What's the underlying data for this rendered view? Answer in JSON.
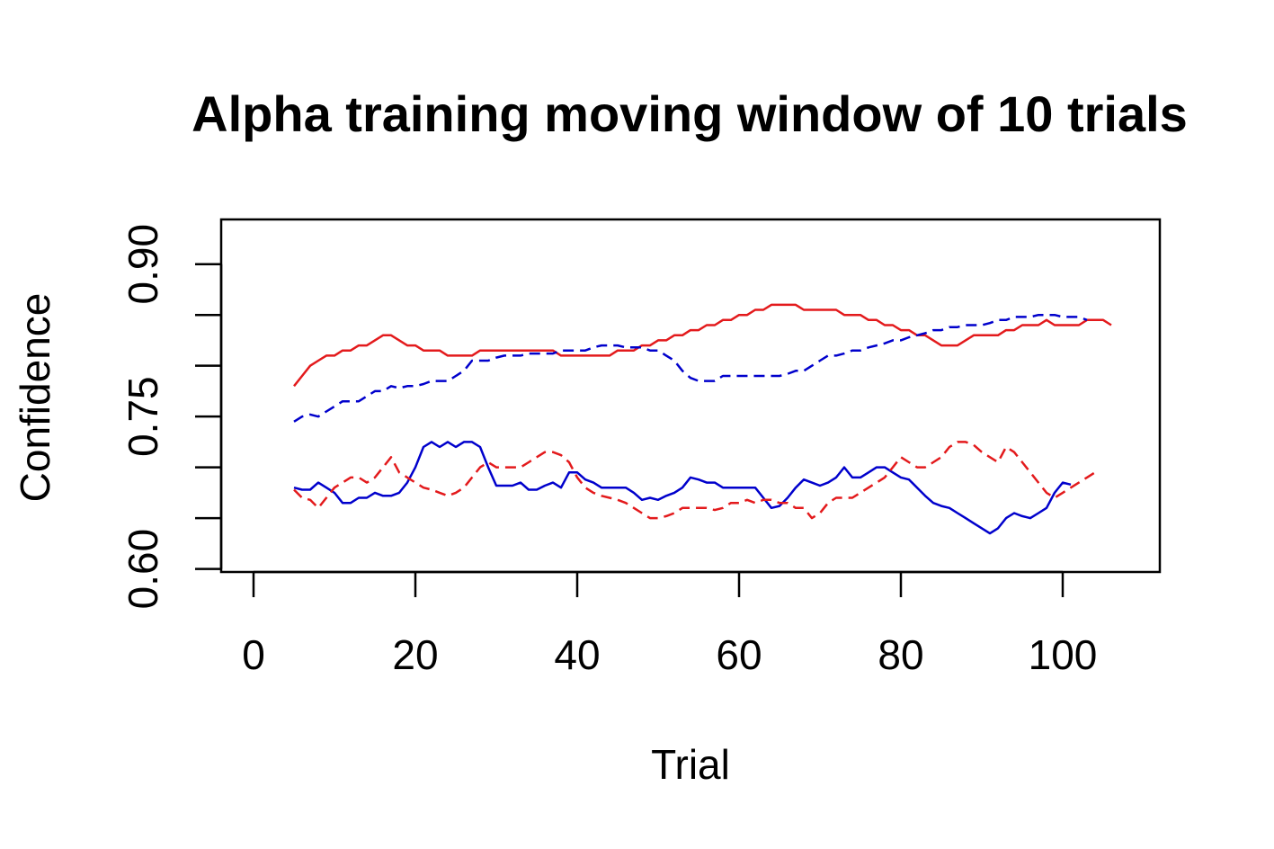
{
  "chart_data": {
    "type": "line",
    "title": "Alpha training moving window of 10 trials",
    "xlabel": "Trial",
    "ylabel": "Confidence",
    "xlim": [
      -4,
      112
    ],
    "ylim": [
      0.597,
      0.944
    ],
    "x_ticks": [
      0,
      20,
      40,
      60,
      80,
      100
    ],
    "x_tick_labels": [
      "0",
      "20",
      "40",
      "60",
      "80",
      "100"
    ],
    "y_ticks": [
      0.6,
      0.65,
      0.7,
      0.75,
      0.8,
      0.85,
      0.9
    ],
    "y_tick_labels": [
      "0.60",
      "",
      "",
      "0.75",
      "",
      "",
      "0.90"
    ],
    "grid": false,
    "legend": "none",
    "x_start": 5,
    "series": [
      {
        "color": "#e31a1c",
        "dash": "solid",
        "values": [
          0.78,
          0.79,
          0.8,
          0.805,
          0.81,
          0.81,
          0.815,
          0.815,
          0.82,
          0.82,
          0.825,
          0.83,
          0.83,
          0.825,
          0.82,
          0.82,
          0.815,
          0.815,
          0.815,
          0.81,
          0.81,
          0.81,
          0.81,
          0.815,
          0.815,
          0.815,
          0.815,
          0.815,
          0.815,
          0.815,
          0.815,
          0.815,
          0.815,
          0.81,
          0.81,
          0.81,
          0.81,
          0.81,
          0.81,
          0.81,
          0.815,
          0.815,
          0.815,
          0.82,
          0.82,
          0.825,
          0.825,
          0.83,
          0.83,
          0.835,
          0.835,
          0.84,
          0.84,
          0.845,
          0.845,
          0.85,
          0.85,
          0.855,
          0.855,
          0.86,
          0.86,
          0.86,
          0.86,
          0.855,
          0.855,
          0.855,
          0.855,
          0.855,
          0.85,
          0.85,
          0.85,
          0.845,
          0.845,
          0.84,
          0.84,
          0.835,
          0.835,
          0.83,
          0.83,
          0.825,
          0.82,
          0.82,
          0.82,
          0.825,
          0.83,
          0.83,
          0.83,
          0.83,
          0.835,
          0.835,
          0.84,
          0.84,
          0.84,
          0.845,
          0.84,
          0.84,
          0.84,
          0.84,
          0.845,
          0.845,
          0.845,
          0.84
        ]
      },
      {
        "color": "#0000cc",
        "dash": "dashed",
        "values": [
          0.745,
          0.75,
          0.752,
          0.75,
          0.755,
          0.76,
          0.765,
          0.765,
          0.765,
          0.77,
          0.775,
          0.775,
          0.78,
          0.778,
          0.78,
          0.78,
          0.782,
          0.785,
          0.785,
          0.785,
          0.79,
          0.795,
          0.805,
          0.805,
          0.805,
          0.808,
          0.81,
          0.81,
          0.81,
          0.812,
          0.812,
          0.812,
          0.812,
          0.815,
          0.815,
          0.815,
          0.815,
          0.818,
          0.82,
          0.82,
          0.82,
          0.818,
          0.818,
          0.818,
          0.815,
          0.815,
          0.81,
          0.805,
          0.795,
          0.788,
          0.785,
          0.785,
          0.785,
          0.79,
          0.79,
          0.79,
          0.79,
          0.79,
          0.79,
          0.79,
          0.79,
          0.792,
          0.795,
          0.795,
          0.8,
          0.805,
          0.81,
          0.81,
          0.812,
          0.815,
          0.815,
          0.818,
          0.82,
          0.822,
          0.825,
          0.825,
          0.828,
          0.83,
          0.832,
          0.835,
          0.835,
          0.838,
          0.838,
          0.84,
          0.84,
          0.84,
          0.842,
          0.845,
          0.845,
          0.848,
          0.848,
          0.848,
          0.85,
          0.85,
          0.85,
          0.848,
          0.848,
          0.848,
          0.845
        ]
      },
      {
        "color": "#0000cc",
        "dash": "solid",
        "values": [
          0.68,
          0.678,
          0.678,
          0.685,
          0.68,
          0.675,
          0.665,
          0.665,
          0.67,
          0.67,
          0.675,
          0.672,
          0.672,
          0.675,
          0.685,
          0.7,
          0.72,
          0.725,
          0.72,
          0.725,
          0.72,
          0.725,
          0.725,
          0.72,
          0.7,
          0.682,
          0.682,
          0.682,
          0.685,
          0.678,
          0.678,
          0.682,
          0.685,
          0.68,
          0.695,
          0.695,
          0.688,
          0.685,
          0.68,
          0.68,
          0.68,
          0.68,
          0.675,
          0.668,
          0.67,
          0.668,
          0.672,
          0.675,
          0.68,
          0.69,
          0.688,
          0.685,
          0.685,
          0.68,
          0.68,
          0.68,
          0.68,
          0.68,
          0.67,
          0.66,
          0.662,
          0.67,
          0.68,
          0.688,
          0.685,
          0.682,
          0.685,
          0.69,
          0.7,
          0.69,
          0.69,
          0.695,
          0.7,
          0.7,
          0.695,
          0.69,
          0.688,
          0.68,
          0.672,
          0.665,
          0.662,
          0.66,
          0.655,
          0.65,
          0.645,
          0.64,
          0.635,
          0.64,
          0.65,
          0.655,
          0.652,
          0.65,
          0.655,
          0.66,
          0.675,
          0.685,
          0.683
        ]
      },
      {
        "color": "#e31a1c",
        "dash": "dashed",
        "values": [
          0.678,
          0.67,
          0.668,
          0.66,
          0.67,
          0.68,
          0.685,
          0.69,
          0.69,
          0.685,
          0.69,
          0.7,
          0.71,
          0.695,
          0.69,
          0.685,
          0.68,
          0.678,
          0.675,
          0.672,
          0.675,
          0.68,
          0.69,
          0.7,
          0.705,
          0.7,
          0.7,
          0.7,
          0.7,
          0.705,
          0.71,
          0.715,
          0.715,
          0.712,
          0.705,
          0.69,
          0.68,
          0.675,
          0.672,
          0.67,
          0.668,
          0.665,
          0.66,
          0.655,
          0.65,
          0.65,
          0.652,
          0.655,
          0.66,
          0.66,
          0.66,
          0.66,
          0.658,
          0.66,
          0.665,
          0.665,
          0.668,
          0.665,
          0.668,
          0.668,
          0.665,
          0.665,
          0.66,
          0.66,
          0.65,
          0.655,
          0.665,
          0.67,
          0.67,
          0.67,
          0.675,
          0.68,
          0.685,
          0.69,
          0.7,
          0.71,
          0.705,
          0.7,
          0.7,
          0.705,
          0.71,
          0.72,
          0.725,
          0.725,
          0.722,
          0.715,
          0.71,
          0.705,
          0.72,
          0.715,
          0.705,
          0.695,
          0.685,
          0.675,
          0.67,
          0.675,
          0.68,
          0.685,
          0.69,
          0.695
        ]
      }
    ]
  }
}
